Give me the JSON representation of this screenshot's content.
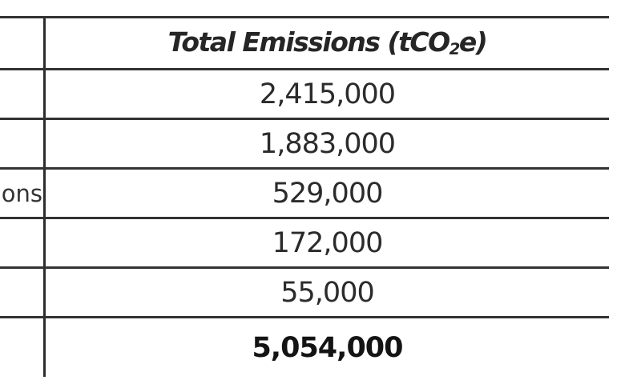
{
  "meta": {
    "background_color": "#ffffff",
    "line_color": "#333333",
    "text_color": "#2b2b2b",
    "description": "Cropped document scan of an emissions totals table; left label column is cut off at the image edge"
  },
  "table": {
    "header": {
      "title_full": "Total Emissions (tCO₂e)",
      "title_prefix": "Total Emissions (tCO",
      "title_subscript": "2",
      "title_suffix": "e)"
    },
    "left_column": {
      "visible_truncated_fragment": "ons"
    },
    "rows": [
      {
        "label_fragment": "",
        "value": "2,415,000",
        "is_total": false
      },
      {
        "label_fragment": "",
        "value": "1,883,000",
        "is_total": false
      },
      {
        "label_fragment": "ons",
        "value": "529,000",
        "is_total": false
      },
      {
        "label_fragment": "",
        "value": "172,000",
        "is_total": false
      },
      {
        "label_fragment": "",
        "value": "55,000",
        "is_total": false
      },
      {
        "label_fragment": "",
        "value": "5,054,000",
        "is_total": true
      }
    ]
  },
  "chart_data": {
    "type": "table",
    "title": "Total Emissions (tCO₂e)",
    "columns": [
      "(label column, cropped)",
      "Total Emissions (tCO₂e)"
    ],
    "values": [
      2415000,
      1883000,
      529000,
      172000,
      55000
    ],
    "total": 5054000,
    "row_labels_visible": [
      "",
      "",
      "ons (truncated)",
      "",
      "",
      "total row (bold)"
    ]
  }
}
